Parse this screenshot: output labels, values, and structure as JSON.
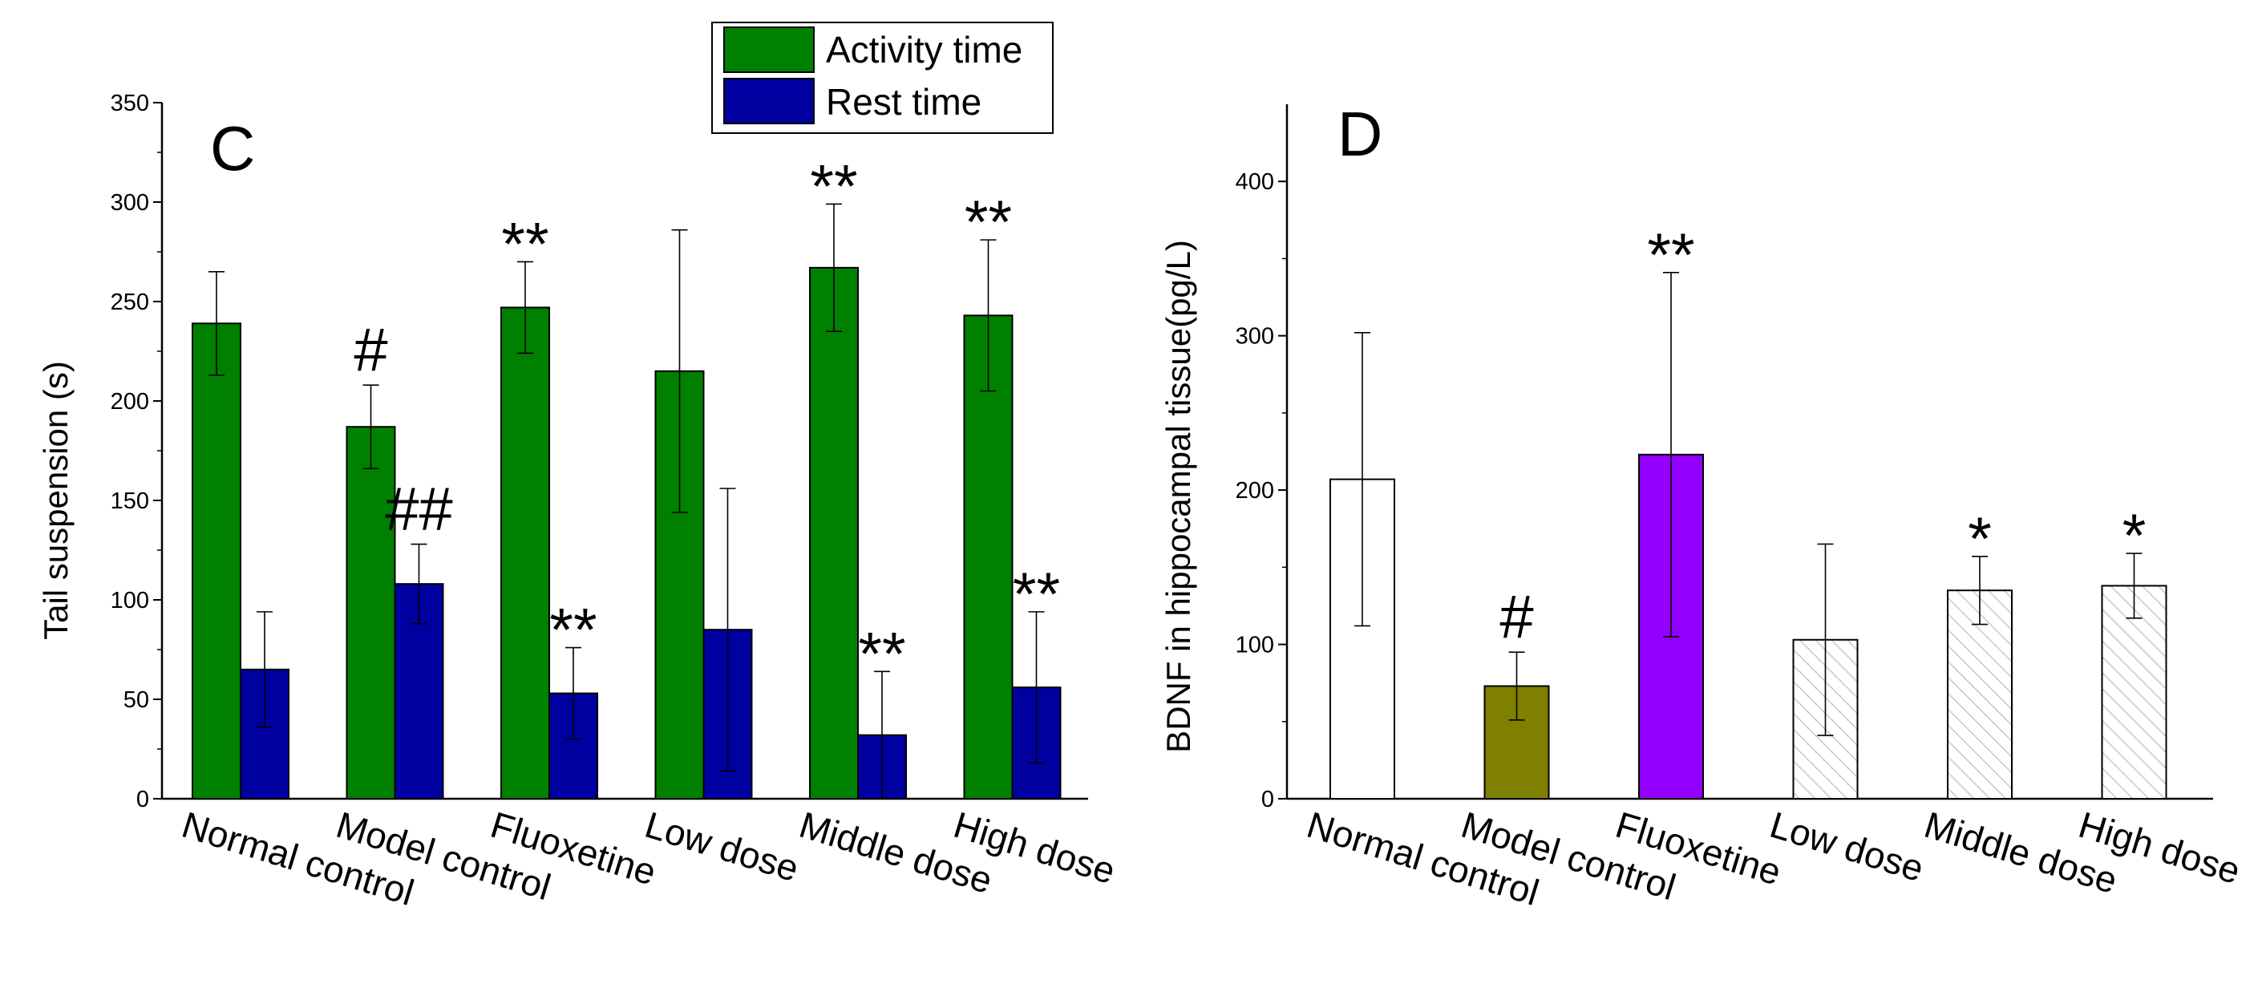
{
  "chart_data": [
    {
      "type": "bar",
      "panel_label": "C",
      "ylabel": "Tail suspension (s)",
      "xlabel": "",
      "ylim": [
        0,
        350
      ],
      "yticks": [
        0,
        50,
        100,
        150,
        200,
        250,
        300,
        350
      ],
      "categories": [
        "Normal control",
        "Model control",
        "Fluoxetine",
        "Low dose",
        "Middle dose",
        "High dose"
      ],
      "legend_position": "top-center",
      "series": [
        {
          "name": "Activity time",
          "color": "#008000",
          "values": [
            239,
            187,
            247,
            215,
            267,
            243
          ],
          "errors": [
            26,
            21,
            23,
            71,
            32,
            38
          ],
          "annotations": [
            "",
            "#",
            "**",
            "",
            "**",
            "**"
          ]
        },
        {
          "name": "Rest time",
          "color": "#0000a0",
          "values": [
            65,
            108,
            53,
            85,
            32,
            56
          ],
          "errors": [
            29,
            20,
            23,
            71,
            32,
            38
          ],
          "annotations": [
            "",
            "##",
            "**",
            "",
            "**",
            "**"
          ]
        }
      ]
    },
    {
      "type": "bar",
      "panel_label": "D",
      "ylabel": "BDNF in hippocampal tissue(pg/L)",
      "xlabel": "",
      "ylim": [
        0,
        450
      ],
      "yticks": [
        0,
        100,
        200,
        300,
        400
      ],
      "categories": [
        "Normal control",
        "Model control",
        "Fluoxetine",
        "Low dose",
        "Middle dose",
        "High dose"
      ],
      "series": [
        {
          "values": [
            207,
            73,
            223,
            103,
            135,
            138
          ],
          "errors": [
            95,
            22,
            118,
            62,
            22,
            21
          ],
          "fills": [
            "#ffffff",
            "#808000",
            "#9400ff",
            "hatch",
            "hatch",
            "hatch"
          ],
          "annotations": [
            "",
            "#",
            "**",
            "",
            "*",
            "*"
          ]
        }
      ]
    }
  ]
}
